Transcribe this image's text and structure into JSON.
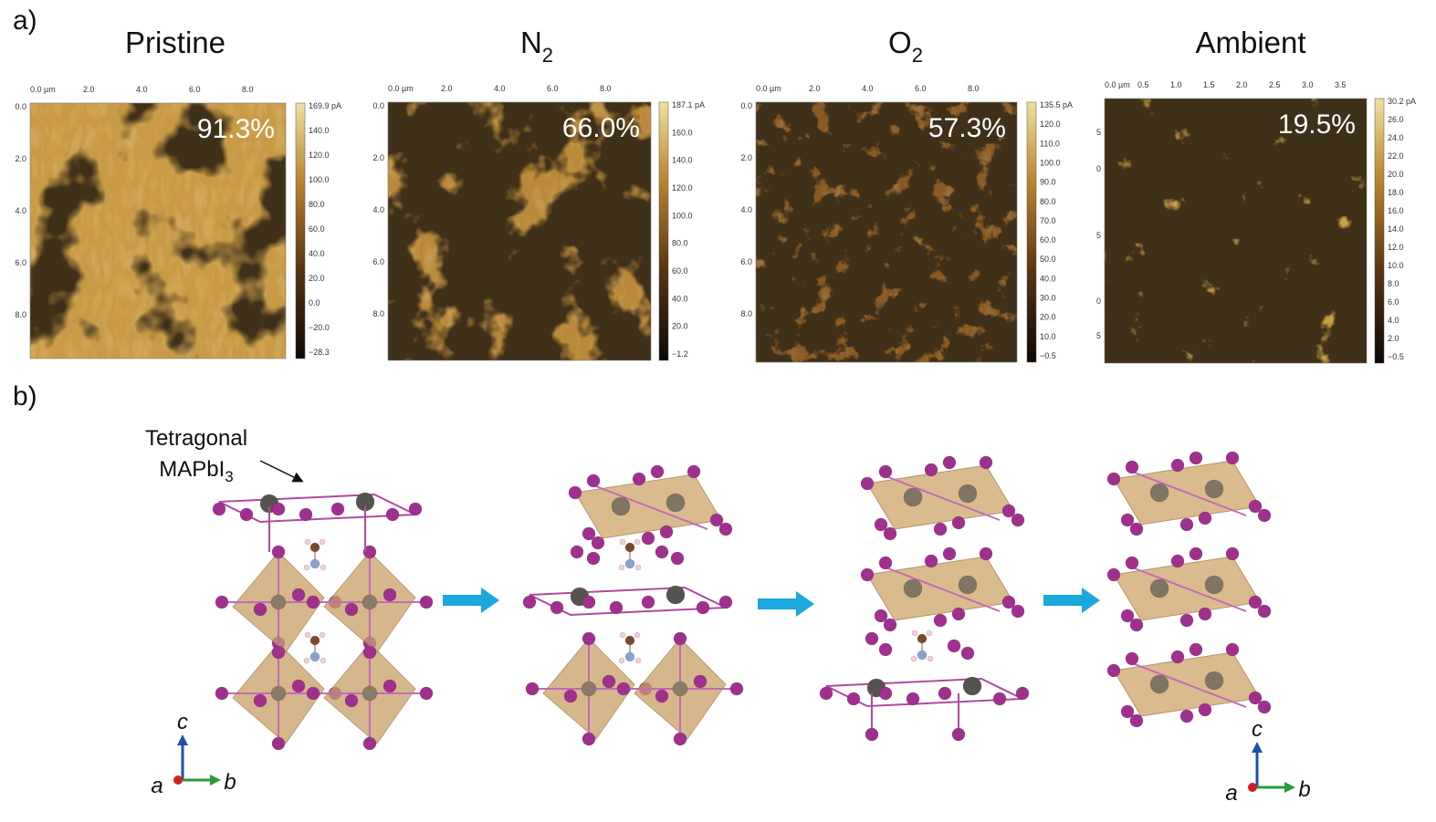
{
  "panel_a": {
    "label": "a)",
    "images": [
      {
        "title": "Pristine",
        "percentage": "91.3%",
        "x_axis": [
          "0.0 µm",
          "2.0",
          "4.0",
          "6.0",
          "8.0"
        ],
        "y_axis": [
          "0.0",
          "2.0",
          "4.0",
          "6.0",
          "8.0"
        ],
        "colorbar": [
          "169.9 pA",
          "140.0",
          "120.0",
          "100.0",
          "80.0",
          "60.0",
          "40.0",
          "20.0",
          "0.0",
          "−20.0",
          "−28.3"
        ]
      },
      {
        "title": "N",
        "title_subscript": "2",
        "percentage": "66.0%",
        "x_axis": [
          "0.0 µm",
          "2.0",
          "4.0",
          "6.0",
          "8.0"
        ],
        "y_axis": [
          "0.0",
          "2.0",
          "4.0",
          "6.0",
          "8.0"
        ],
        "colorbar": [
          "187.1 pA",
          "160.0",
          "140.0",
          "120.0",
          "100.0",
          "80.0",
          "60.0",
          "40.0",
          "20.0",
          "−1.2"
        ]
      },
      {
        "title": "O",
        "title_subscript": "2",
        "percentage": "57.3%",
        "x_axis": [
          "0.0 µm",
          "2.0",
          "4.0",
          "6.0",
          "8.0"
        ],
        "y_axis": [
          "0.0",
          "2.0",
          "4.0",
          "6.0",
          "8.0"
        ],
        "colorbar": [
          "135.5 pA",
          "120.0",
          "110.0",
          "100.0",
          "90.0",
          "80.0",
          "70.0",
          "60.0",
          "50.0",
          "40.0",
          "30.0",
          "20.0",
          "10.0",
          "−0.5"
        ]
      },
      {
        "title": "Ambient",
        "percentage": "19.5%",
        "x_axis": [
          "0.0 µm",
          "0.5",
          "1.0",
          "1.5",
          "2.0",
          "2.5",
          "3.0",
          "3.5"
        ],
        "y_axis": [
          "5",
          "0",
          "5",
          "0",
          "5"
        ],
        "colorbar": [
          "30.2 pA",
          "26.0",
          "24.0",
          "22.0",
          "20.0",
          "18.0",
          "16.0",
          "14.0",
          "12.0",
          "10.0",
          "8.0",
          "6.0",
          "4.0",
          "2.0",
          "−0.5"
        ]
      }
    ]
  },
  "panel_b": {
    "label": "b)",
    "structure_label": {
      "line1": "Tetragonal",
      "line2": "MAPbI",
      "line2_subscript": "3"
    },
    "axes": [
      {
        "c": "c",
        "a": "a",
        "b": "b"
      },
      {
        "c": "c",
        "a": "a",
        "b": "b"
      }
    ]
  }
}
